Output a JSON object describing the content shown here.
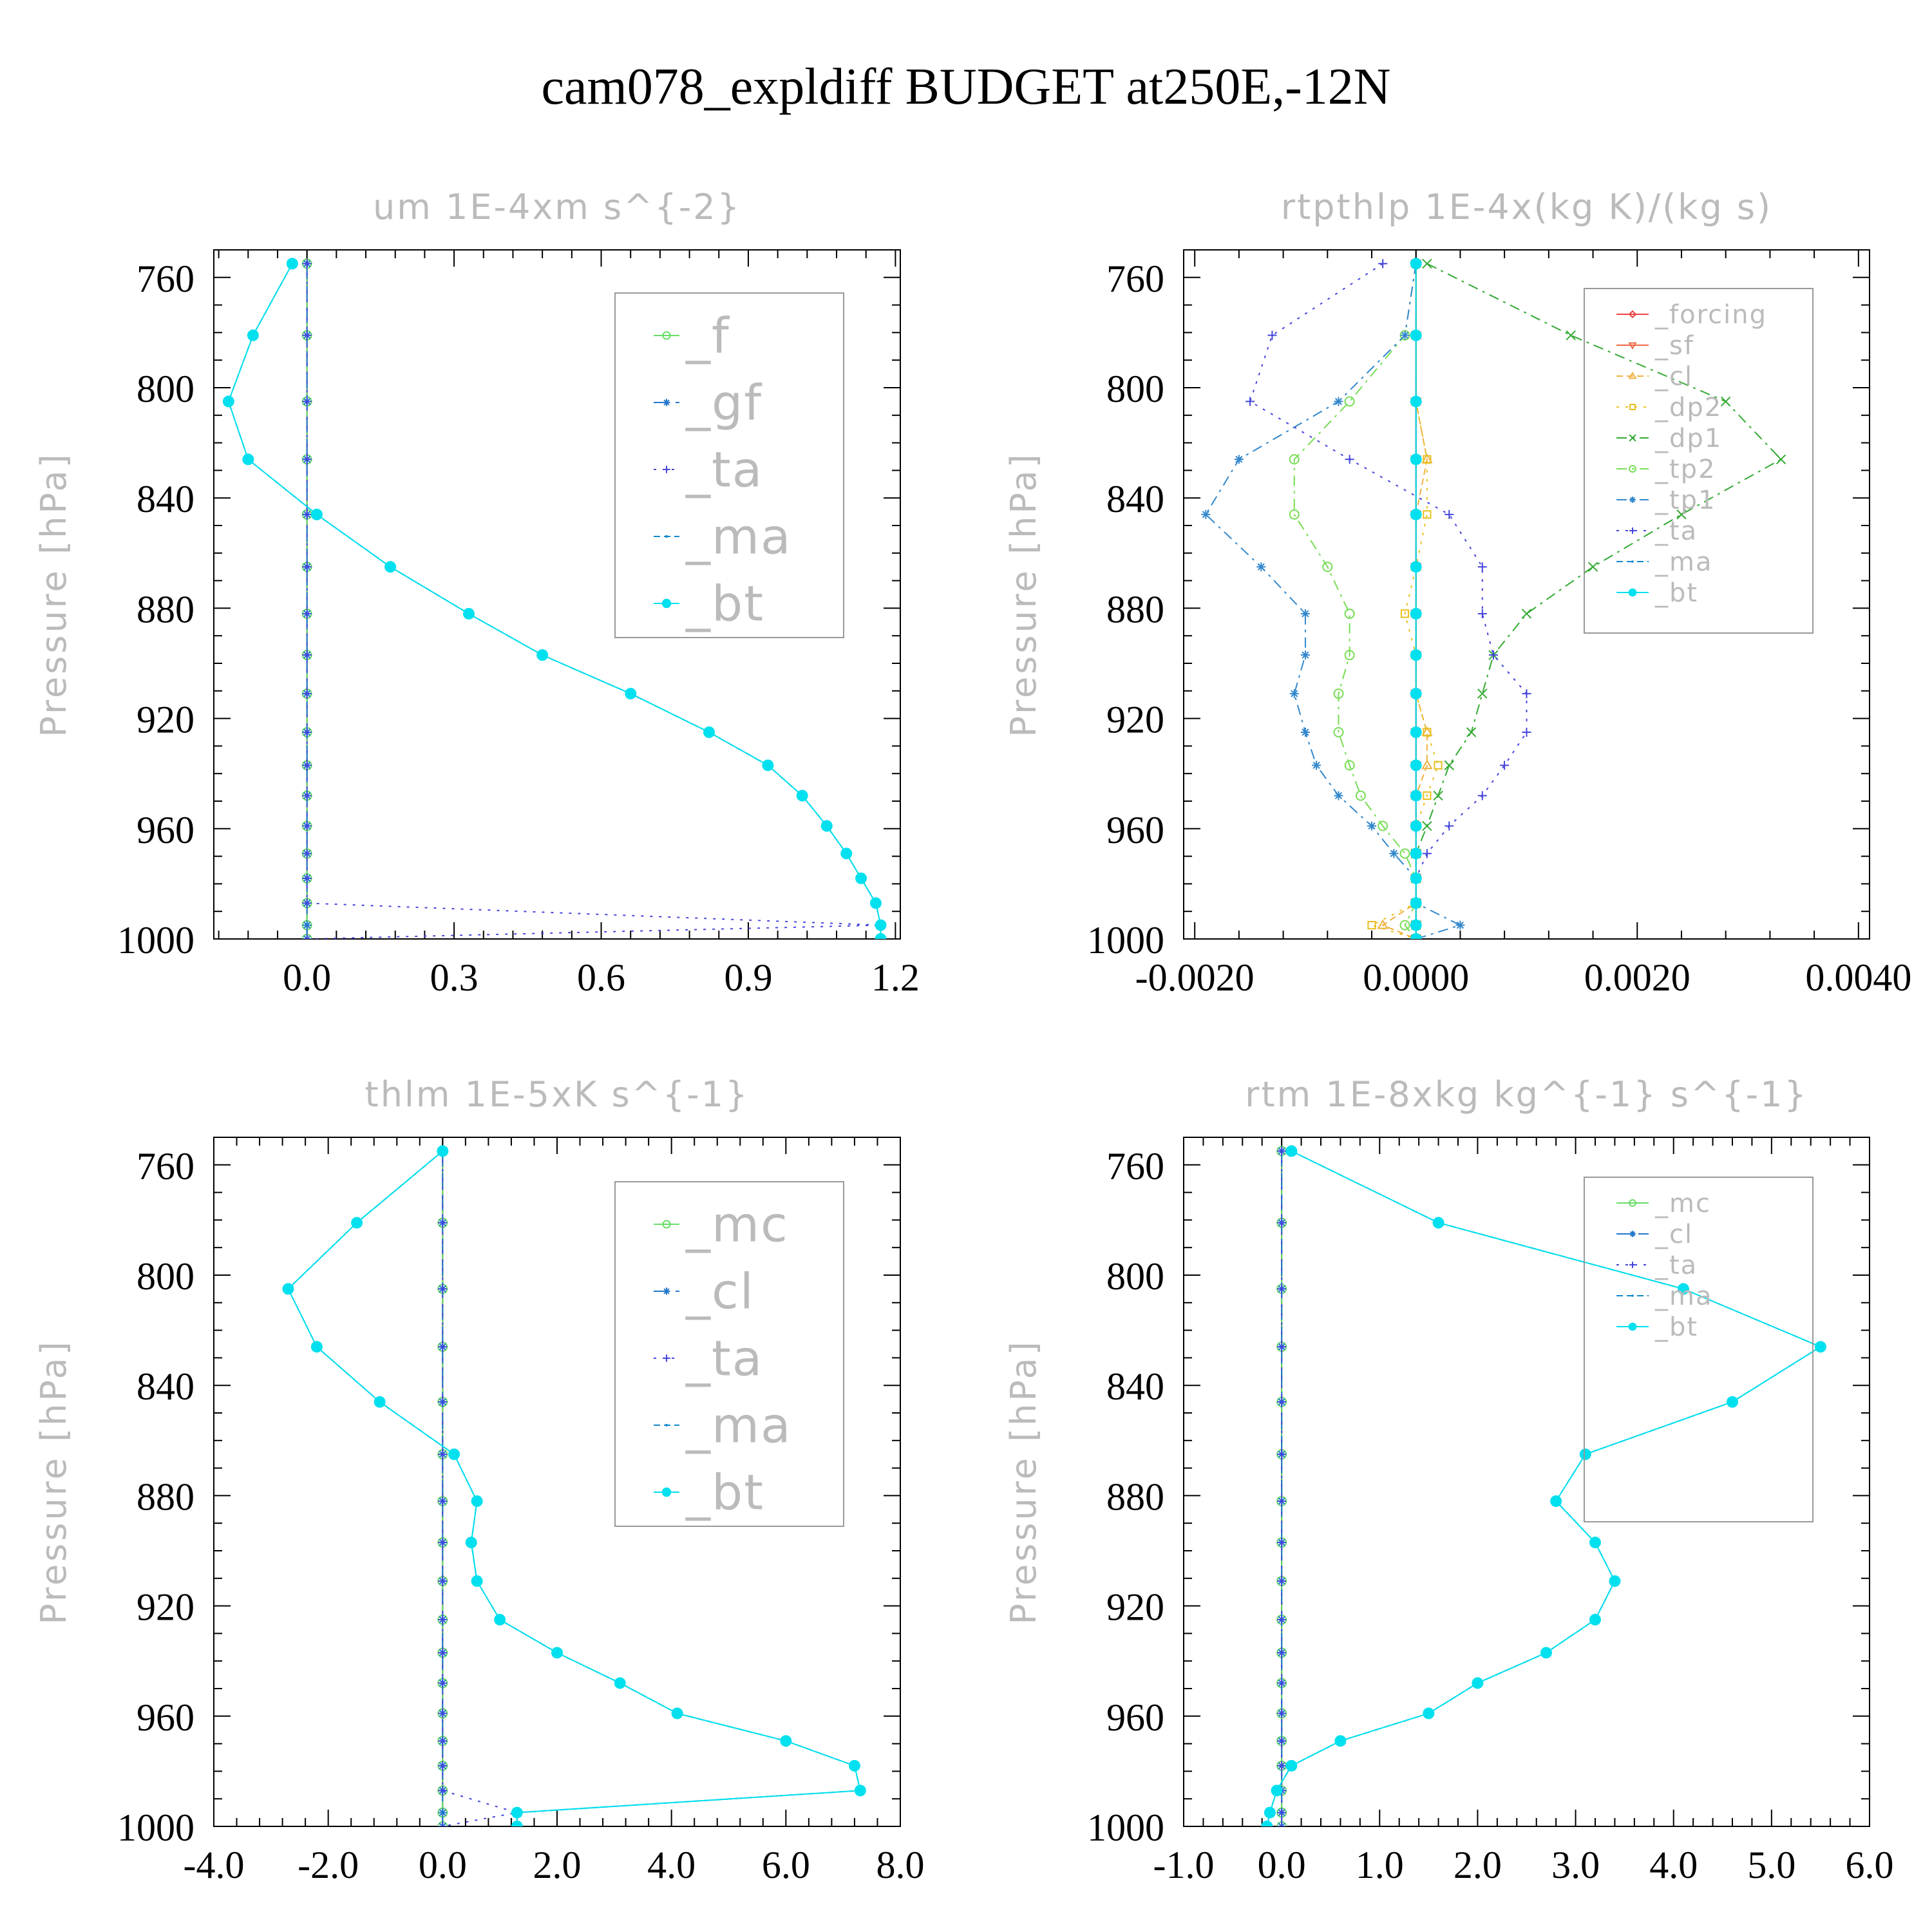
{
  "title": "cam078_expldiff  BUDGET at250E,-12N",
  "colors": {
    "f": "#66dd66",
    "gf": "#2277cc",
    "ta": "#4444dd",
    "ma": "#1188cc",
    "bt": "#00e0ee",
    "forcing": "#ee4444",
    "sf": "#ee6644",
    "cl_orange": "#f0b040",
    "dp2": "#e8c020",
    "dp1": "#33aa33",
    "tp2": "#77dd55",
    "tp1": "#3388cc",
    "mc": "#66dd66",
    "cl": "#2277cc"
  },
  "chart_data": [
    {
      "type": "line",
      "title": "um   1E-4xm s^{-2}",
      "ylabel": "Pressure [hPa]",
      "xlim": [
        -0.19,
        1.21
      ],
      "ylim": [
        750,
        1000
      ],
      "xticks": [
        0.0,
        0.3,
        0.6,
        0.9,
        1.2
      ],
      "xtick_labels": [
        "0.0",
        "0.3",
        "0.6",
        "0.9",
        "1.2"
      ],
      "yticks": [
        760,
        800,
        840,
        880,
        920,
        960,
        1000
      ],
      "ytick_labels": [
        "760",
        "800",
        "840",
        "880",
        "920",
        "960",
        "1000"
      ],
      "levels": [
        755,
        781,
        805,
        826,
        846,
        865,
        882,
        897,
        911,
        925,
        937,
        948,
        959,
        969,
        978,
        987,
        995,
        1000
      ],
      "series": [
        {
          "name": "_f",
          "color_key": "f",
          "marker": "circle",
          "dash": "none",
          "values": [
            0,
            0,
            0,
            0,
            0,
            0,
            0,
            0,
            0,
            0,
            0,
            0,
            0,
            0,
            0,
            0,
            0,
            0
          ]
        },
        {
          "name": "_gf",
          "color_key": "gf",
          "marker": "asterisk",
          "dash": "long",
          "values": [
            0,
            0,
            0,
            0,
            0,
            0,
            0,
            0,
            0,
            0,
            0,
            0,
            0,
            0,
            0,
            0,
            0,
            0
          ]
        },
        {
          "name": "_ta",
          "color_key": "ta",
          "marker": "plus",
          "dash": "dot",
          "values": [
            0,
            0,
            0,
            0,
            0,
            0,
            0,
            0,
            0,
            0,
            0,
            0,
            0,
            0,
            0,
            0,
            1.17,
            0
          ]
        },
        {
          "name": "_ma",
          "color_key": "ma",
          "marker": "dot",
          "dash": "dash",
          "values": [
            -0.03,
            -0.11,
            -0.16,
            -0.12,
            0.02,
            0.17,
            0.33,
            0.48,
            0.66,
            0.82,
            0.94,
            1.01,
            1.06,
            1.1,
            1.13,
            1.16,
            1.17,
            1.17
          ]
        },
        {
          "name": "_bt",
          "color_key": "bt",
          "marker": "bigdot",
          "dash": "none",
          "values": [
            -0.03,
            -0.11,
            -0.16,
            -0.12,
            0.02,
            0.17,
            0.33,
            0.48,
            0.66,
            0.82,
            0.94,
            1.01,
            1.06,
            1.1,
            1.13,
            1.16,
            1.17,
            1.17
          ]
        }
      ],
      "legend": "top-right"
    },
    {
      "type": "line",
      "title": "rtpthlp   1E-4x(kg K)/(kg s)",
      "ylabel": "Pressure [hPa]",
      "xlim": [
        -0.0021,
        0.0041
      ],
      "ylim": [
        750,
        1000
      ],
      "xticks": [
        -0.002,
        0.0,
        0.002,
        0.004
      ],
      "xtick_labels": [
        "-0.0020",
        "0.0000",
        "0.0020",
        "0.0040"
      ],
      "yticks": [
        760,
        800,
        840,
        880,
        920,
        960,
        1000
      ],
      "ytick_labels": [
        "760",
        "800",
        "840",
        "880",
        "920",
        "960",
        "1000"
      ],
      "levels": [
        755,
        781,
        805,
        826,
        846,
        865,
        882,
        897,
        911,
        925,
        937,
        948,
        959,
        969,
        978,
        987,
        995,
        1000
      ],
      "series": [
        {
          "name": "_forcing",
          "color_key": "forcing",
          "marker": "diamond",
          "dash": "none",
          "values": [
            0,
            0,
            0,
            0,
            0,
            0,
            0,
            0,
            0,
            0,
            0,
            0,
            0,
            0,
            0,
            0,
            0,
            0
          ]
        },
        {
          "name": "_sf",
          "color_key": "sf",
          "marker": "triangle-down",
          "dash": "none",
          "values": [
            0,
            0,
            0,
            0,
            0,
            0,
            0,
            0,
            0,
            0,
            0,
            0,
            0,
            0,
            0,
            0,
            0,
            0
          ]
        },
        {
          "name": "_cl",
          "color_key": "cl_orange",
          "marker": "triangle",
          "dash": "dash",
          "values": [
            0,
            0,
            0,
            0.0001,
            0,
            0,
            0,
            0,
            0,
            0.0001,
            0.0001,
            0,
            0,
            0,
            0,
            0,
            -0.0003,
            0
          ]
        },
        {
          "name": "_dp2",
          "color_key": "dp2",
          "marker": "square",
          "dash": "dot",
          "values": [
            0,
            0,
            0,
            0.0001,
            0.0001,
            0,
            -0.0001,
            0,
            0,
            0.0001,
            0.0002,
            0.0001,
            0,
            0,
            0,
            0,
            -0.0004,
            0
          ]
        },
        {
          "name": "_dp1",
          "color_key": "dp1",
          "marker": "x",
          "dash": "dashdot",
          "values": [
            0.0001,
            0.0014,
            0.0028,
            0.0033,
            0.0024,
            0.0016,
            0.001,
            0.0007,
            0.0006,
            0.0005,
            0.0003,
            0.0002,
            0.0001,
            0,
            0,
            0,
            0,
            0
          ]
        },
        {
          "name": "_tp2",
          "color_key": "tp2",
          "marker": "circle",
          "dash": "dashdot",
          "values": [
            0,
            -0.0001,
            -0.0006,
            -0.0011,
            -0.0011,
            -0.0008,
            -0.0006,
            -0.0006,
            -0.0007,
            -0.0007,
            -0.0006,
            -0.0005,
            -0.0003,
            -0.0001,
            0,
            0,
            -0.0001,
            0
          ]
        },
        {
          "name": "_tp1",
          "color_key": "tp1",
          "marker": "asterisk",
          "dash": "dashdot",
          "values": [
            0,
            -0.0001,
            -0.0007,
            -0.0016,
            -0.0019,
            -0.0014,
            -0.001,
            -0.001,
            -0.0011,
            -0.001,
            -0.0009,
            -0.0007,
            -0.0004,
            -0.0002,
            0,
            0,
            0.0004,
            0
          ]
        },
        {
          "name": "_ta",
          "color_key": "ta",
          "marker": "plus",
          "dash": "dot",
          "values": [
            -0.0003,
            -0.0013,
            -0.0015,
            -0.0006,
            0.0003,
            0.0006,
            0.0006,
            0.0007,
            0.001,
            0.001,
            0.0008,
            0.0006,
            0.0003,
            0.0001,
            0,
            0,
            0,
            0
          ]
        },
        {
          "name": "_ma",
          "color_key": "ma",
          "marker": "dot",
          "dash": "dash",
          "values": [
            0,
            0,
            0,
            0,
            0,
            0,
            0,
            0,
            0,
            0,
            0,
            0,
            0,
            0,
            0,
            0,
            0,
            0
          ]
        },
        {
          "name": "_bt",
          "color_key": "bt",
          "marker": "bigdot",
          "dash": "none",
          "values": [
            0,
            0,
            0,
            0,
            0,
            0,
            0,
            0,
            0,
            0,
            0,
            0,
            0,
            0,
            0,
            0,
            0,
            0
          ]
        }
      ],
      "legend": "top-right"
    },
    {
      "type": "line",
      "title": "thlm   1E-5xK s^{-1}",
      "ylabel": "Pressure [hPa]",
      "xlim": [
        -4.0,
        8.0
      ],
      "ylim": [
        750,
        1000
      ],
      "xticks": [
        -4.0,
        -2.0,
        0.0,
        2.0,
        4.0,
        6.0,
        8.0
      ],
      "xtick_labels": [
        "-4.0",
        "-2.0",
        "0.0",
        "2.0",
        "4.0",
        "6.0",
        "8.0"
      ],
      "yticks": [
        760,
        800,
        840,
        880,
        920,
        960,
        1000
      ],
      "ytick_labels": [
        "760",
        "800",
        "840",
        "880",
        "920",
        "960",
        "1000"
      ],
      "levels": [
        755,
        781,
        805,
        826,
        846,
        865,
        882,
        897,
        911,
        925,
        937,
        948,
        959,
        969,
        978,
        987,
        995,
        1000
      ],
      "series": [
        {
          "name": "_mc",
          "color_key": "mc",
          "marker": "circle",
          "dash": "none",
          "values": [
            0,
            0,
            0,
            0,
            0,
            0,
            0,
            0,
            0,
            0,
            0,
            0,
            0,
            0,
            0,
            0,
            0,
            0
          ]
        },
        {
          "name": "_cl",
          "color_key": "cl",
          "marker": "asterisk",
          "dash": "long",
          "values": [
            0,
            0,
            0,
            0,
            0,
            0,
            0,
            0,
            0,
            0,
            0,
            0,
            0,
            0,
            0,
            0,
            0,
            0
          ]
        },
        {
          "name": "_ta",
          "color_key": "ta",
          "marker": "plus",
          "dash": "dot",
          "values": [
            0,
            0,
            0,
            0,
            0,
            0,
            0,
            0,
            0,
            0,
            0,
            0,
            0,
            0,
            0,
            0,
            1.3,
            0
          ]
        },
        {
          "name": "_ma",
          "color_key": "ma",
          "marker": "dot",
          "dash": "dash",
          "values": [
            0,
            -1.5,
            -2.7,
            -2.2,
            -1.1,
            0.2,
            0.6,
            0.5,
            0.6,
            1.0,
            2.0,
            3.1,
            4.1,
            6.0,
            7.2,
            7.3,
            1.3,
            1.3
          ]
        },
        {
          "name": "_bt",
          "color_key": "bt",
          "marker": "bigdot",
          "dash": "none",
          "values": [
            0,
            -1.5,
            -2.7,
            -2.2,
            -1.1,
            0.2,
            0.6,
            0.5,
            0.6,
            1.0,
            2.0,
            3.1,
            4.1,
            6.0,
            7.2,
            7.3,
            1.3,
            1.3
          ]
        }
      ],
      "legend": "top-right"
    },
    {
      "type": "line",
      "title": "rtm   1E-8xkg kg^{-1} s^{-1}",
      "ylabel": "Pressure [hPa]",
      "xlim": [
        -1.0,
        6.0
      ],
      "ylim": [
        750,
        1000
      ],
      "xticks": [
        -1.0,
        0.0,
        1.0,
        2.0,
        3.0,
        4.0,
        5.0,
        6.0
      ],
      "xtick_labels": [
        "-1.0",
        "0.0",
        "1.0",
        "2.0",
        "3.0",
        "4.0",
        "5.0",
        "6.0"
      ],
      "yticks": [
        760,
        800,
        840,
        880,
        920,
        960,
        1000
      ],
      "ytick_labels": [
        "760",
        "800",
        "840",
        "880",
        "920",
        "960",
        "1000"
      ],
      "levels": [
        755,
        781,
        805,
        826,
        846,
        865,
        882,
        897,
        911,
        925,
        937,
        948,
        959,
        969,
        978,
        987,
        995,
        1000
      ],
      "series": [
        {
          "name": "_mc",
          "color_key": "mc",
          "marker": "circle",
          "dash": "none",
          "values": [
            0,
            0,
            0,
            0,
            0,
            0,
            0,
            0,
            0,
            0,
            0,
            0,
            0,
            0,
            0,
            0,
            0,
            0
          ]
        },
        {
          "name": "_cl",
          "color_key": "cl",
          "marker": "asterisk",
          "dash": "long",
          "values": [
            0,
            0,
            0,
            0,
            0,
            0,
            0,
            0,
            0,
            0,
            0,
            0,
            0,
            0,
            0,
            0,
            0,
            0
          ]
        },
        {
          "name": "_ta",
          "color_key": "ta",
          "marker": "plus",
          "dash": "dot",
          "values": [
            0,
            0,
            0,
            0,
            0,
            0,
            0,
            0,
            0,
            0,
            0,
            0,
            0,
            0,
            0,
            0,
            0,
            0
          ]
        },
        {
          "name": "_ma",
          "color_key": "ma",
          "marker": "dot",
          "dash": "dash",
          "values": [
            0.1,
            1.6,
            4.1,
            5.5,
            4.6,
            3.1,
            2.8,
            3.2,
            3.4,
            3.2,
            2.7,
            2.0,
            1.5,
            0.6,
            0.1,
            -0.05,
            -0.12,
            -0.15
          ]
        },
        {
          "name": "_bt",
          "color_key": "bt",
          "marker": "bigdot",
          "dash": "none",
          "values": [
            0.1,
            1.6,
            4.1,
            5.5,
            4.6,
            3.1,
            2.8,
            3.2,
            3.4,
            3.2,
            2.7,
            2.0,
            1.5,
            0.6,
            0.1,
            -0.05,
            -0.12,
            -0.15
          ]
        }
      ],
      "legend": "top-right"
    }
  ]
}
